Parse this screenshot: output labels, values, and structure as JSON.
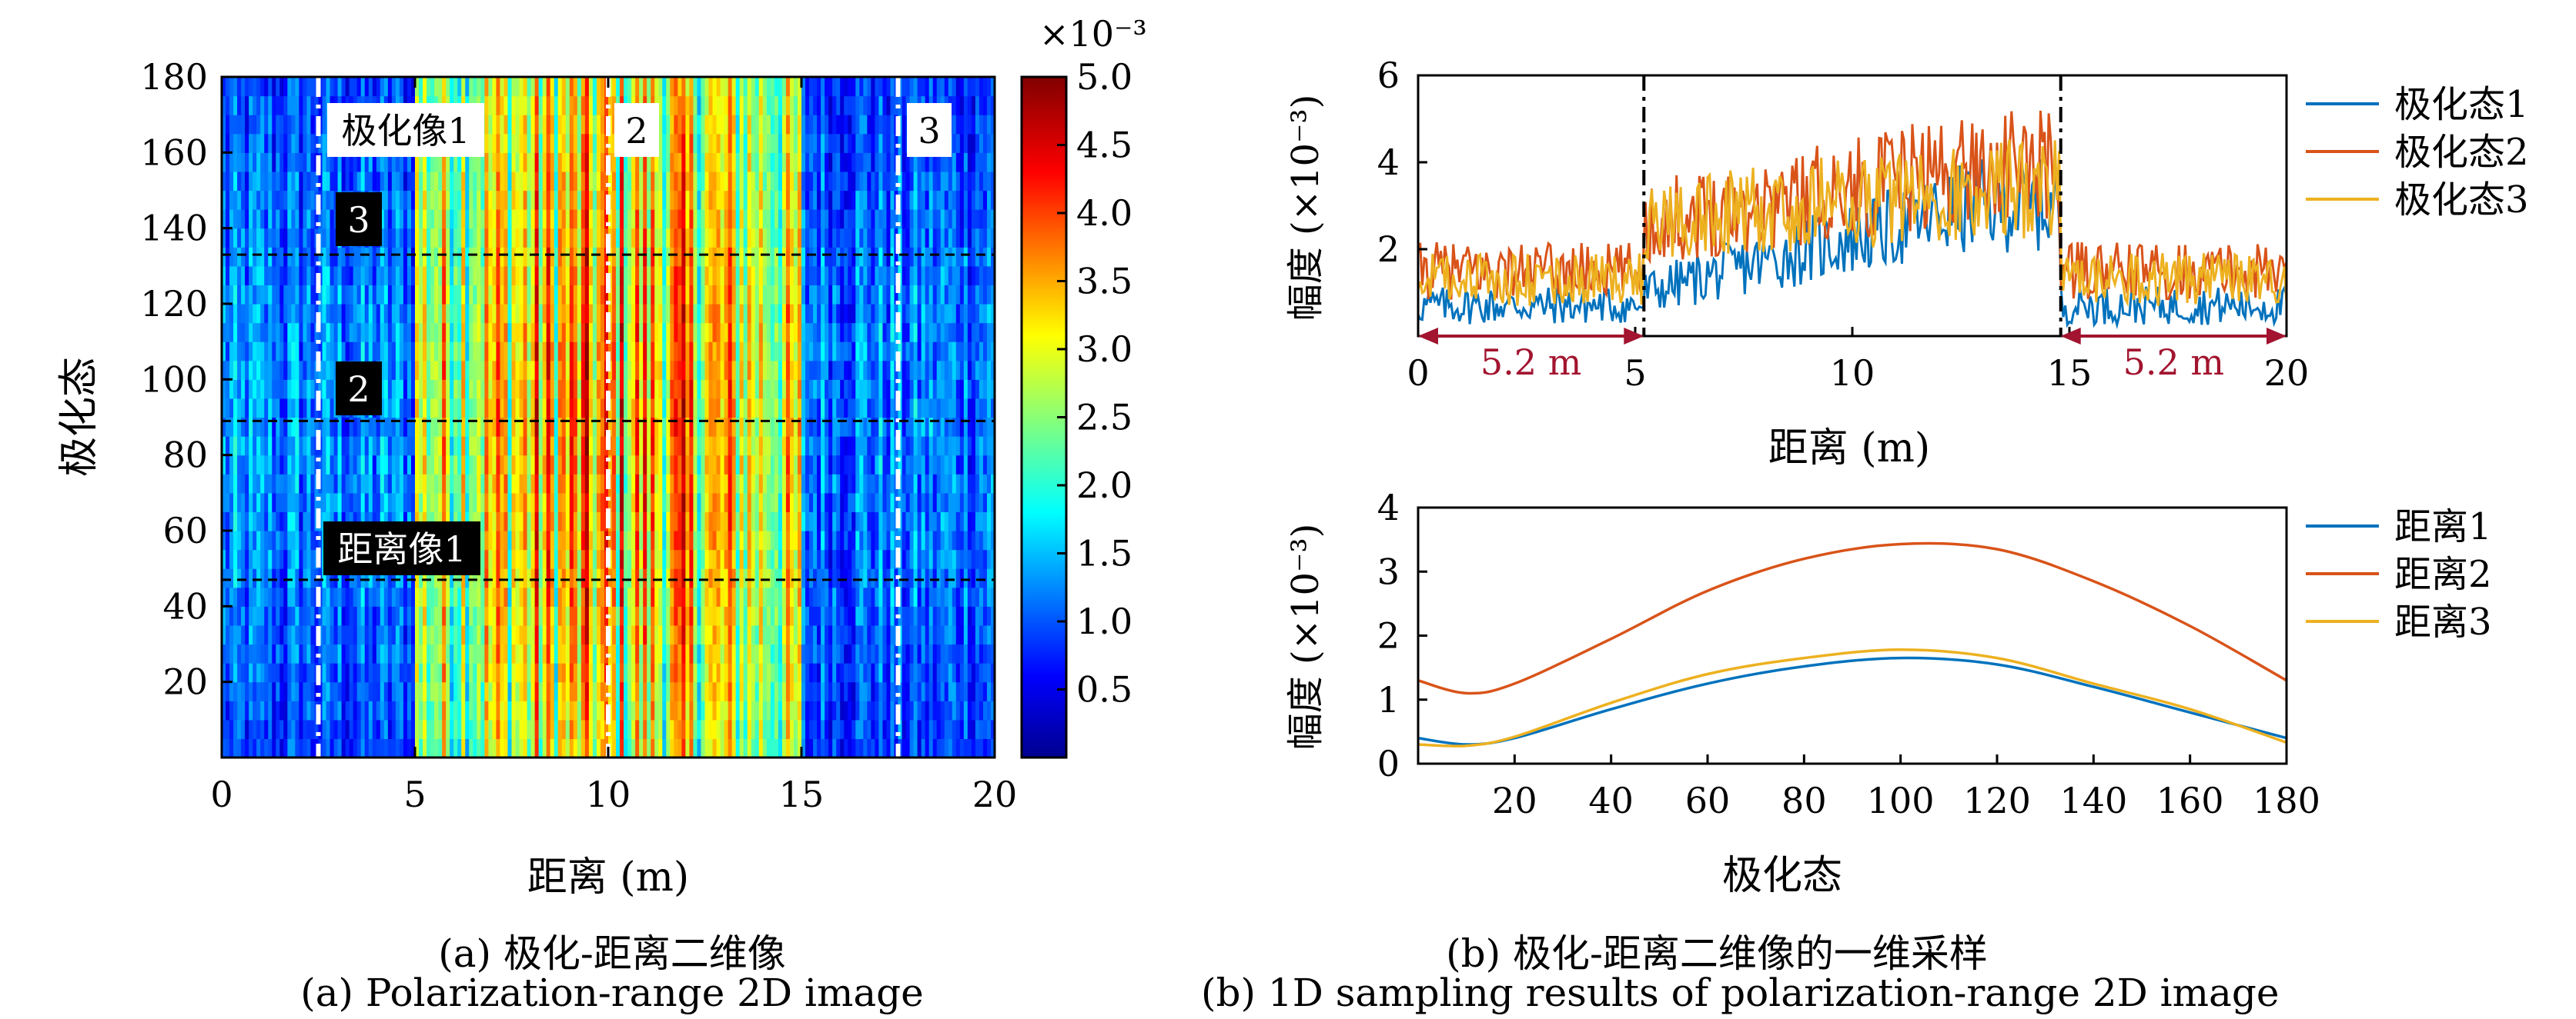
{
  "colors": {
    "series1": "#0072bd",
    "series2": "#d95319",
    "series3": "#edb120",
    "annotation": "#a2142f"
  },
  "captions": {
    "a_cn": "(a) 极化-距离二维像",
    "a_en": "(a) Polarization-range 2D image",
    "b_cn": "(b) 极化-距离二维像的一维采样",
    "b_en": "(b) 1D sampling results of polarization-range 2D image"
  },
  "chart_data": [
    {
      "type": "heatmap",
      "xlabel": "距离 (m)",
      "ylabel": "极化态",
      "xlim": [
        0,
        20
      ],
      "ylim": [
        0,
        180
      ],
      "xticks": [
        "0",
        "5",
        "10",
        "15",
        "20"
      ],
      "yticks": [
        "20",
        "40",
        "60",
        "80",
        "100",
        "120",
        "140",
        "160",
        "180"
      ],
      "colorbar": {
        "range": [
          0,
          5.0
        ],
        "exponent_label": "×10⁻³",
        "ticks": [
          "0.5",
          "1.0",
          "1.5",
          "2.0",
          "2.5",
          "3.0",
          "3.5",
          "4.0",
          "4.5",
          "5.0"
        ]
      },
      "range_image_positions_m": [
        2.5,
        10.0,
        17.5
      ],
      "polarization_image_positions": [
        47,
        89,
        133
      ],
      "labels": {
        "range_image_1": "极化像1",
        "range_image_2": "2",
        "range_image_3": "3",
        "pol_image_1": "距离像1",
        "pol_image_2": "2",
        "pol_image_3": "3"
      },
      "peak_region_m": [
        5,
        15
      ]
    },
    {
      "type": "line",
      "xlabel": "距离 (m)",
      "ylabel": "幅度 (×10⁻³)",
      "xlim": [
        0,
        20
      ],
      "ylim": [
        0,
        6
      ],
      "xticks": [
        "0",
        "5",
        "10",
        "15",
        "20"
      ],
      "yticks": [
        "2",
        "4",
        "6"
      ],
      "legend_position": "right",
      "series": [
        {
          "name": "极化态1",
          "level_outer": 0.7,
          "level_inner": [
            1.0,
            3.0
          ]
        },
        {
          "name": "极化态2",
          "level_outer": 1.5,
          "level_inner": [
            2.6,
            3.9
          ]
        },
        {
          "name": "极化态3",
          "level_outer": 1.3,
          "level_inner": [
            2.6,
            3.4
          ]
        }
      ],
      "boundaries_m": [
        5.2,
        14.8
      ],
      "annotations": [
        {
          "text": "5.2 m",
          "from": 0,
          "to": 5.2
        },
        {
          "text": "5.2 m",
          "from": 14.8,
          "to": 20
        }
      ]
    },
    {
      "type": "line",
      "xlabel": "极化态",
      "ylabel": "幅度 (×10⁻³)",
      "xlim": [
        0,
        180
      ],
      "ylim": [
        0,
        4
      ],
      "xticks": [
        "20",
        "40",
        "60",
        "80",
        "100",
        "120",
        "140",
        "160",
        "180"
      ],
      "yticks": [
        "0",
        "1",
        "2",
        "3",
        "4"
      ],
      "legend_position": "right",
      "series": [
        {
          "name": "距离1",
          "x": [
            0,
            10,
            20,
            40,
            60,
            80,
            100,
            120,
            140,
            160,
            180
          ],
          "y": [
            0.4,
            0.3,
            0.4,
            0.85,
            1.25,
            1.52,
            1.65,
            1.55,
            1.2,
            0.8,
            0.4
          ]
        },
        {
          "name": "距离2",
          "x": [
            0,
            10,
            20,
            40,
            60,
            80,
            100,
            120,
            140,
            160,
            180
          ],
          "y": [
            1.3,
            1.1,
            1.25,
            1.95,
            2.7,
            3.2,
            3.43,
            3.35,
            2.85,
            2.15,
            1.3
          ]
        },
        {
          "name": "距离3",
          "x": [
            0,
            10,
            20,
            40,
            60,
            80,
            100,
            120,
            140,
            160,
            180
          ],
          "y": [
            0.3,
            0.28,
            0.42,
            0.95,
            1.4,
            1.65,
            1.78,
            1.65,
            1.25,
            0.85,
            0.33
          ]
        }
      ]
    }
  ]
}
